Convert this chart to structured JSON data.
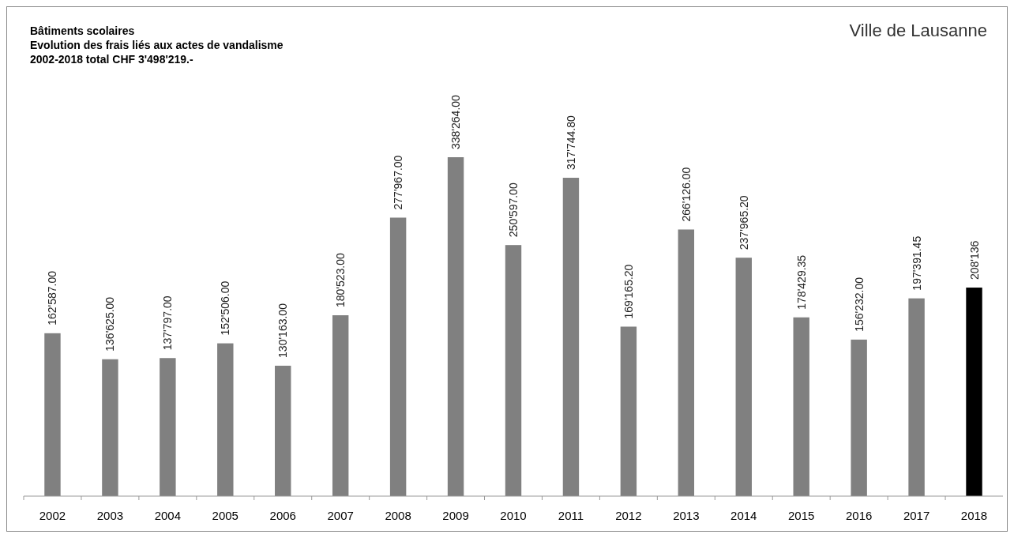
{
  "chart_data": {
    "type": "bar",
    "title": "Bâtiments scolaires",
    "subtitle": "Evolution des frais liés aux actes de vandalisme",
    "annotations": [
      "2002-2018  total CHF 3'498'219.-",
      "Ville de Lausanne"
    ],
    "categories": [
      "2002",
      "2003",
      "2004",
      "2005",
      "2006",
      "2007",
      "2008",
      "2009",
      "2010",
      "2011",
      "2012",
      "2013",
      "2014",
      "2015",
      "2016",
      "2017",
      "2018"
    ],
    "values": [
      162587,
      136625,
      137797,
      152506,
      130163,
      180523,
      277967,
      338264,
      250597,
      317744.8,
      169165.2,
      266126,
      237965.2,
      178429.35,
      156232,
      197391.45,
      208136
    ],
    "colors": [
      "#808080",
      "#808080",
      "#808080",
      "#808080",
      "#808080",
      "#808080",
      "#808080",
      "#808080",
      "#808080",
      "#808080",
      "#808080",
      "#808080",
      "#808080",
      "#808080",
      "#808080",
      "#808080",
      "#000000"
    ],
    "value_labels": [
      "162'587.00",
      "136'625.00",
      "137'797.00",
      "152'506.00",
      "130'163.00",
      "180'523.00",
      "277'967.00",
      "338'264.00",
      "250'597.00",
      "317'744.80",
      "169'165.20",
      "266'126.00",
      "237'965.20",
      "178'429.35",
      "156'232.00",
      "197'391.45",
      "208'136"
    ],
    "grid": false
  }
}
